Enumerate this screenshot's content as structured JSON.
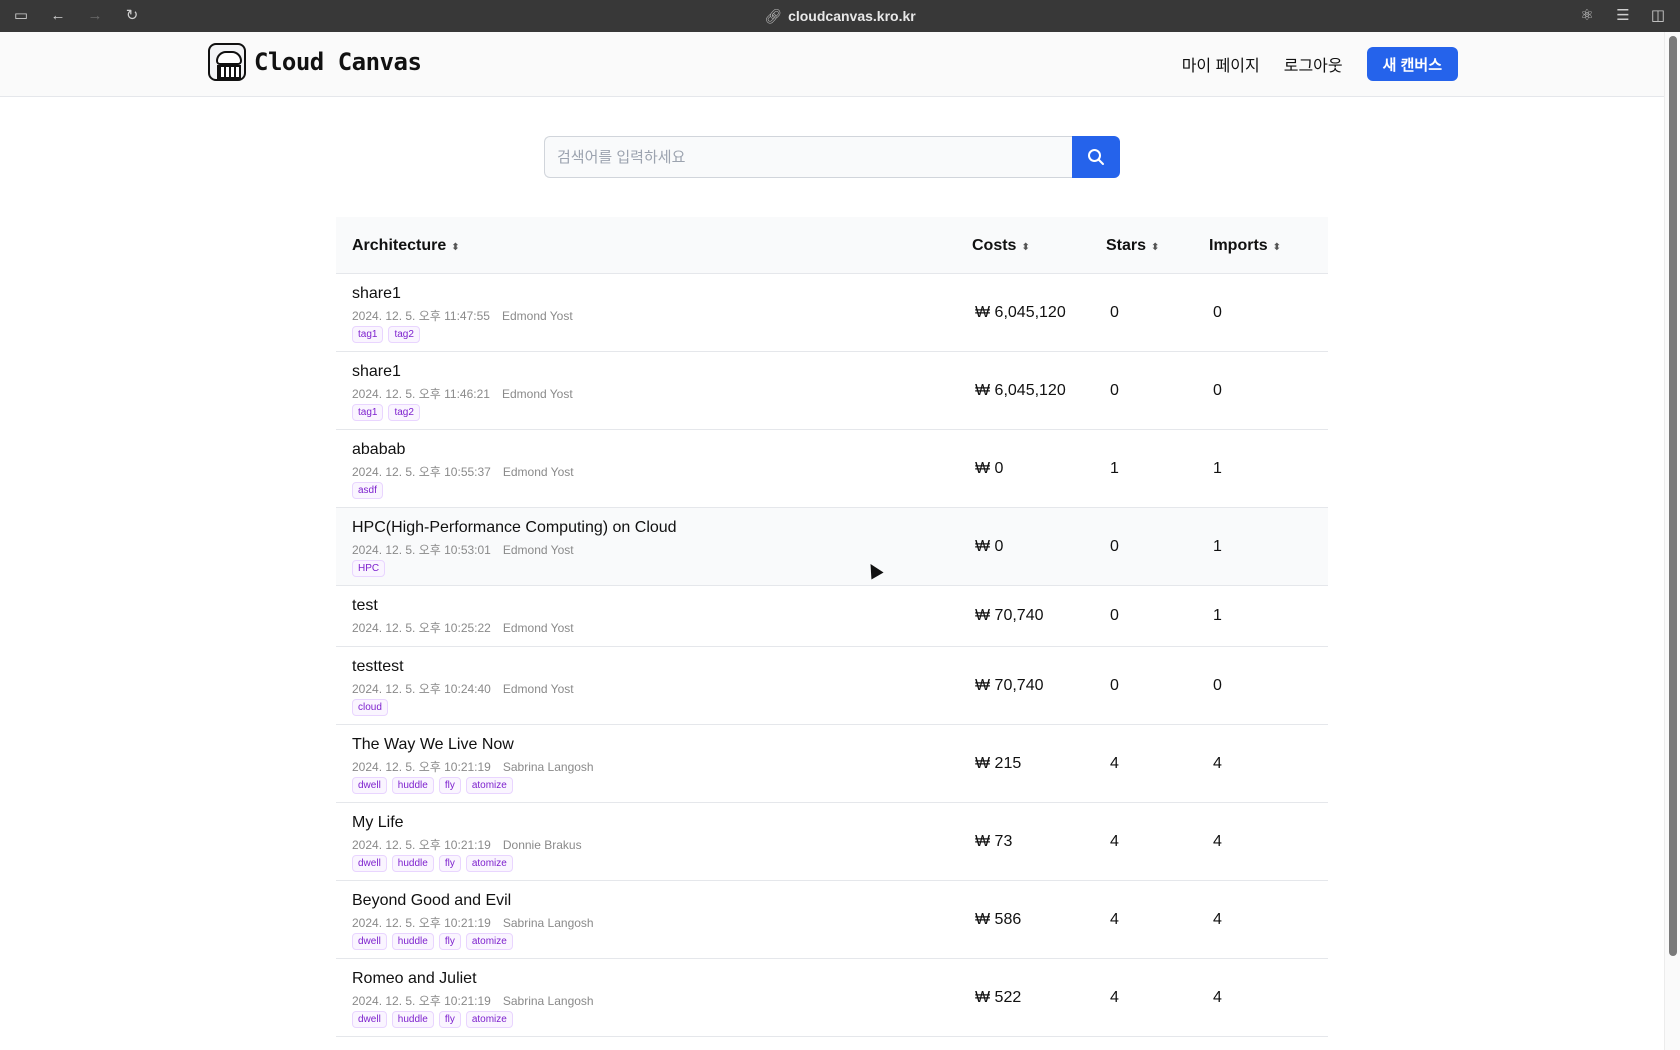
{
  "browser": {
    "url": "cloudcanvas.kro.kr"
  },
  "header": {
    "logo_text": "Cloud Canvas",
    "nav": {
      "mypage": "마이 페이지",
      "logout": "로그아웃",
      "new_canvas": "새 캔버스"
    }
  },
  "search": {
    "placeholder": "검색어를 입력하세요"
  },
  "table": {
    "columns": {
      "architecture": "Architecture",
      "costs": "Costs",
      "stars": "Stars",
      "imports": "Imports"
    },
    "rows": [
      {
        "title": "share1",
        "date": "2024. 12. 5. 오후 11:47:55",
        "author": "Edmond Yost",
        "tags": [
          "tag1",
          "tag2"
        ],
        "cost": "₩ 6,045,120",
        "stars": "0",
        "imports": "0"
      },
      {
        "title": "share1",
        "date": "2024. 12. 5. 오후 11:46:21",
        "author": "Edmond Yost",
        "tags": [
          "tag1",
          "tag2"
        ],
        "cost": "₩ 6,045,120",
        "stars": "0",
        "imports": "0"
      },
      {
        "title": "ababab",
        "date": "2024. 12. 5. 오후 10:55:37",
        "author": "Edmond Yost",
        "tags": [
          "asdf"
        ],
        "cost": "₩ 0",
        "stars": "1",
        "imports": "1"
      },
      {
        "title": "HPC(High-Performance Computing) on Cloud",
        "date": "2024. 12. 5. 오후 10:53:01",
        "author": "Edmond Yost",
        "tags": [
          "HPC"
        ],
        "cost": "₩ 0",
        "stars": "0",
        "imports": "1"
      },
      {
        "title": "test",
        "date": "2024. 12. 5. 오후 10:25:22",
        "author": "Edmond Yost",
        "tags": [],
        "cost": "₩ 70,740",
        "stars": "0",
        "imports": "1"
      },
      {
        "title": "testtest",
        "date": "2024. 12. 5. 오후 10:24:40",
        "author": "Edmond Yost",
        "tags": [
          "cloud"
        ],
        "cost": "₩ 70,740",
        "stars": "0",
        "imports": "0"
      },
      {
        "title": "The Way We Live Now",
        "date": "2024. 12. 5. 오후 10:21:19",
        "author": "Sabrina Langosh",
        "tags": [
          "dwell",
          "huddle",
          "fly",
          "atomize"
        ],
        "cost": "₩ 215",
        "stars": "4",
        "imports": "4"
      },
      {
        "title": "My Life",
        "date": "2024. 12. 5. 오후 10:21:19",
        "author": "Donnie Brakus",
        "tags": [
          "dwell",
          "huddle",
          "fly",
          "atomize"
        ],
        "cost": "₩ 73",
        "stars": "4",
        "imports": "4"
      },
      {
        "title": "Beyond Good and Evil",
        "date": "2024. 12. 5. 오후 10:21:19",
        "author": "Sabrina Langosh",
        "tags": [
          "dwell",
          "huddle",
          "fly",
          "atomize"
        ],
        "cost": "₩ 586",
        "stars": "4",
        "imports": "4"
      },
      {
        "title": "Romeo and Juliet",
        "date": "2024. 12. 5. 오후 10:21:19",
        "author": "Sabrina Langosh",
        "tags": [
          "dwell",
          "huddle",
          "fly",
          "atomize"
        ],
        "cost": "₩ 522",
        "stars": "4",
        "imports": "4"
      }
    ]
  }
}
